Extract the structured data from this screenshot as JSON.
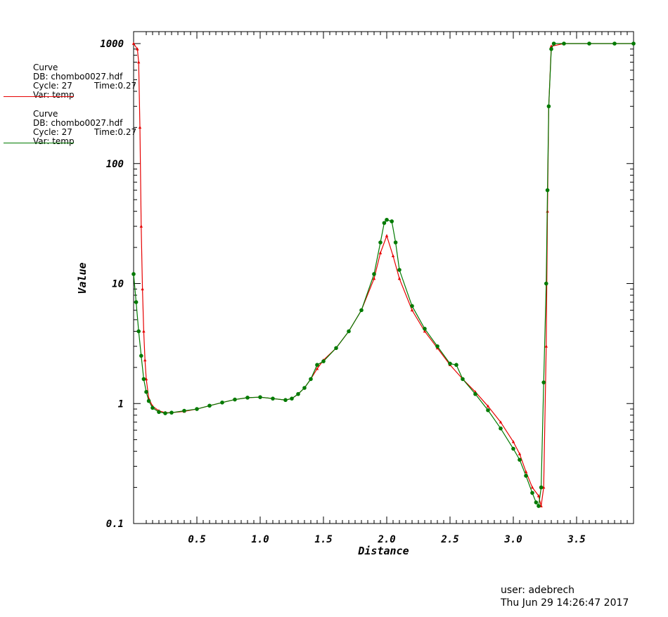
{
  "legend": [
    {
      "title": "Curve",
      "db": "DB: chombo0027.hdf",
      "cycle": "Cycle: 27",
      "time": "Time:0.27",
      "var": "Var: temp",
      "color": "#e60000",
      "marker": "triangle"
    },
    {
      "title": "Curve",
      "db": "DB: chombo0027.hdf",
      "cycle": "Cycle: 27",
      "time": "Time:0.27",
      "var": "Var: temp",
      "color": "#007a00",
      "marker": "circle"
    }
  ],
  "footer": {
    "user": "user: adebrech",
    "date": "Thu Jun 29 14:26:47 2017"
  },
  "chart_data": {
    "type": "line",
    "xlabel": "Distance",
    "ylabel": "Value",
    "xlim": [
      0,
      3.95
    ],
    "ylim": [
      0.1,
      1300
    ],
    "yscale": "log",
    "xticks": [
      "0.5",
      "1.0",
      "1.5",
      "2.0",
      "2.5",
      "3.0",
      "3.5"
    ],
    "yticks": [
      "0.1",
      "1",
      "10",
      "100",
      "1000"
    ],
    "series": [
      {
        "color": "#e60000",
        "marker": "triangle",
        "points": [
          [
            0.0,
            1000
          ],
          [
            0.03,
            900
          ],
          [
            0.04,
            700
          ],
          [
            0.05,
            200
          ],
          [
            0.06,
            30
          ],
          [
            0.07,
            9
          ],
          [
            0.08,
            4
          ],
          [
            0.09,
            2.3
          ],
          [
            0.1,
            1.6
          ],
          [
            0.12,
            1.1
          ],
          [
            0.15,
            0.95
          ],
          [
            0.2,
            0.87
          ],
          [
            0.25,
            0.84
          ],
          [
            0.3,
            0.84
          ],
          [
            0.4,
            0.86
          ],
          [
            0.5,
            0.9
          ],
          [
            0.6,
            0.96
          ],
          [
            0.7,
            1.02
          ],
          [
            0.8,
            1.08
          ],
          [
            0.9,
            1.12
          ],
          [
            1.0,
            1.13
          ],
          [
            1.1,
            1.1
          ],
          [
            1.2,
            1.07
          ],
          [
            1.25,
            1.1
          ],
          [
            1.3,
            1.2
          ],
          [
            1.35,
            1.35
          ],
          [
            1.4,
            1.6
          ],
          [
            1.45,
            1.95
          ],
          [
            1.5,
            2.3
          ],
          [
            1.6,
            2.9
          ],
          [
            1.7,
            4.0
          ],
          [
            1.8,
            6.0
          ],
          [
            1.9,
            11
          ],
          [
            1.95,
            18
          ],
          [
            2.0,
            25
          ],
          [
            2.05,
            17
          ],
          [
            2.1,
            11
          ],
          [
            2.2,
            6.0
          ],
          [
            2.3,
            4.0
          ],
          [
            2.4,
            2.9
          ],
          [
            2.5,
            2.1
          ],
          [
            2.6,
            1.6
          ],
          [
            2.7,
            1.25
          ],
          [
            2.8,
            0.95
          ],
          [
            2.9,
            0.7
          ],
          [
            3.0,
            0.48
          ],
          [
            3.05,
            0.38
          ],
          [
            3.1,
            0.27
          ],
          [
            3.15,
            0.2
          ],
          [
            3.2,
            0.17
          ],
          [
            3.22,
            0.14
          ],
          [
            3.24,
            0.2
          ],
          [
            3.26,
            3
          ],
          [
            3.27,
            40
          ],
          [
            3.28,
            300
          ],
          [
            3.3,
            950
          ],
          [
            3.4,
            1000
          ],
          [
            3.6,
            1000
          ],
          [
            3.8,
            1000
          ],
          [
            3.95,
            1000
          ]
        ]
      },
      {
        "color": "#007a00",
        "marker": "circle",
        "points": [
          [
            0.0,
            12
          ],
          [
            0.02,
            7
          ],
          [
            0.04,
            4
          ],
          [
            0.06,
            2.5
          ],
          [
            0.08,
            1.6
          ],
          [
            0.1,
            1.25
          ],
          [
            0.12,
            1.05
          ],
          [
            0.15,
            0.92
          ],
          [
            0.2,
            0.85
          ],
          [
            0.25,
            0.83
          ],
          [
            0.3,
            0.84
          ],
          [
            0.4,
            0.87
          ],
          [
            0.5,
            0.9
          ],
          [
            0.6,
            0.96
          ],
          [
            0.7,
            1.02
          ],
          [
            0.8,
            1.08
          ],
          [
            0.9,
            1.12
          ],
          [
            1.0,
            1.13
          ],
          [
            1.1,
            1.1
          ],
          [
            1.2,
            1.07
          ],
          [
            1.25,
            1.1
          ],
          [
            1.3,
            1.2
          ],
          [
            1.35,
            1.35
          ],
          [
            1.4,
            1.6
          ],
          [
            1.45,
            2.1
          ],
          [
            1.5,
            2.25
          ],
          [
            1.6,
            2.9
          ],
          [
            1.7,
            4.0
          ],
          [
            1.8,
            6.0
          ],
          [
            1.9,
            12
          ],
          [
            1.95,
            22
          ],
          [
            1.98,
            32
          ],
          [
            2.0,
            34
          ],
          [
            2.04,
            33
          ],
          [
            2.07,
            22
          ],
          [
            2.1,
            13
          ],
          [
            2.2,
            6.5
          ],
          [
            2.3,
            4.2
          ],
          [
            2.4,
            3.0
          ],
          [
            2.5,
            2.15
          ],
          [
            2.55,
            2.1
          ],
          [
            2.6,
            1.6
          ],
          [
            2.7,
            1.2
          ],
          [
            2.8,
            0.88
          ],
          [
            2.9,
            0.62
          ],
          [
            3.0,
            0.42
          ],
          [
            3.05,
            0.34
          ],
          [
            3.1,
            0.25
          ],
          [
            3.15,
            0.18
          ],
          [
            3.18,
            0.15
          ],
          [
            3.2,
            0.14
          ],
          [
            3.22,
            0.2
          ],
          [
            3.24,
            1.5
          ],
          [
            3.26,
            10
          ],
          [
            3.27,
            60
          ],
          [
            3.28,
            300
          ],
          [
            3.3,
            900
          ],
          [
            3.32,
            1000
          ],
          [
            3.4,
            1000
          ],
          [
            3.6,
            1000
          ],
          [
            3.8,
            1000
          ],
          [
            3.95,
            1000
          ]
        ]
      }
    ]
  }
}
